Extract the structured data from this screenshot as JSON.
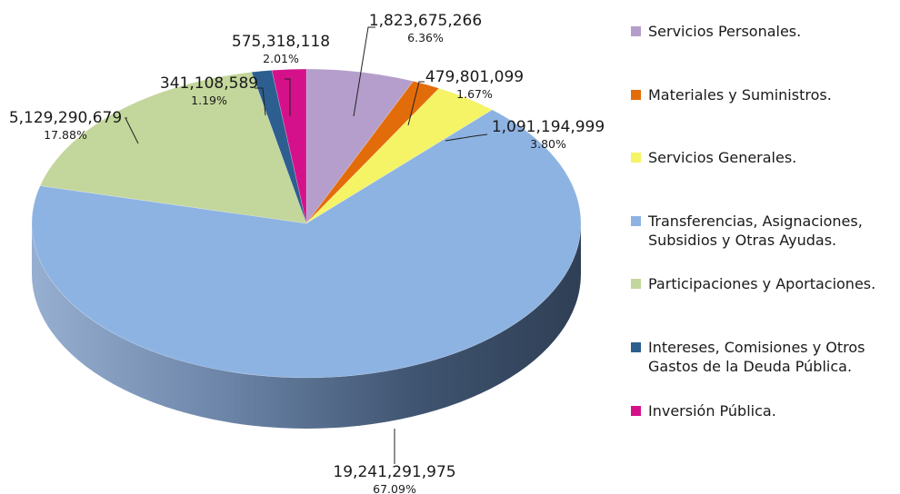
{
  "chart_data": {
    "type": "pie",
    "legend_position": "right",
    "categories": [
      "Servicios Personales.",
      "Materiales y Suministros.",
      "Servicios Generales.",
      "Transferencias, Asignaciones, Subsidios y Otras Ayudas.",
      "Participaciones y Aportaciones.",
      "Intereses, Comisiones y Otros Gastos de la Deuda Pública.",
      "Inversión Pública."
    ],
    "legend_lines": [
      [
        "Servicios Personales."
      ],
      [
        "Materiales y Suministros."
      ],
      [
        "Servicios Generales."
      ],
      [
        "Transferencias, Asignaciones,",
        "Subsidios y Otras Ayudas."
      ],
      [
        "Participaciones y Aportaciones."
      ],
      [
        "Intereses, Comisiones y Otros",
        "Gastos de la Deuda Pública."
      ],
      [
        "Inversión Pública."
      ]
    ],
    "values": [
      1823675266,
      479801099,
      1091194999,
      19241291975,
      5129290679,
      341108589,
      575318118
    ],
    "value_labels": [
      "1,823,675,266",
      "479,801,099",
      "1,091,194,999",
      "19,241,291,975",
      "5,129,290,679",
      "341,108,589",
      "575,318,118"
    ],
    "percent_labels": [
      "6.36%",
      "1.67%",
      "3.80%",
      "67.09%",
      "17.88%",
      "1.19%",
      "2.01%"
    ],
    "colors": [
      "#b59ecb",
      "#e36c0a",
      "#f4f466",
      "#8db3e2",
      "#c3d69b",
      "#2c5e8f",
      "#d4118a"
    ],
    "side_colors": [
      "#7c6a8e",
      "#9c4a06",
      "#a8a84a",
      "#4a607c",
      "#85935f",
      "#1e3f60",
      "#900c5e"
    ]
  }
}
